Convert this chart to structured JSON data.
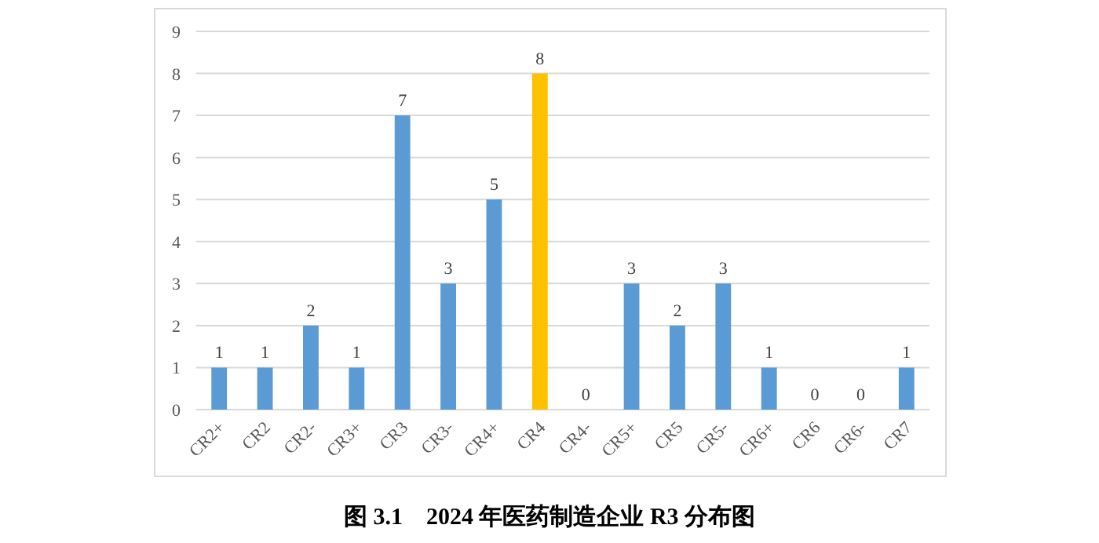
{
  "chart_data": {
    "type": "bar",
    "title": "图 3.1    2024 年医药制造企业 R3 分布图",
    "categories": [
      "CR2+",
      "CR2",
      "CR2-",
      "CR3+",
      "CR3",
      "CR3-",
      "CR4+",
      "CR4",
      "CR4-",
      "CR5+",
      "CR5",
      "CR5-",
      "CR6+",
      "CR6",
      "CR6-",
      "CR7"
    ],
    "values": [
      1,
      1,
      2,
      1,
      7,
      3,
      5,
      8,
      0,
      3,
      2,
      3,
      1,
      0,
      0,
      1
    ],
    "colors": [
      "#5b9bd5",
      "#5b9bd5",
      "#5b9bd5",
      "#5b9bd5",
      "#5b9bd5",
      "#5b9bd5",
      "#5b9bd5",
      "#ffc000",
      "#5b9bd5",
      "#5b9bd5",
      "#5b9bd5",
      "#5b9bd5",
      "#5b9bd5",
      "#5b9bd5",
      "#5b9bd5",
      "#5b9bd5"
    ],
    "ylim": [
      0,
      9
    ],
    "yticks": [
      0,
      1,
      2,
      3,
      4,
      5,
      6,
      7,
      8,
      9
    ],
    "grid": "y",
    "data_labels": true
  }
}
